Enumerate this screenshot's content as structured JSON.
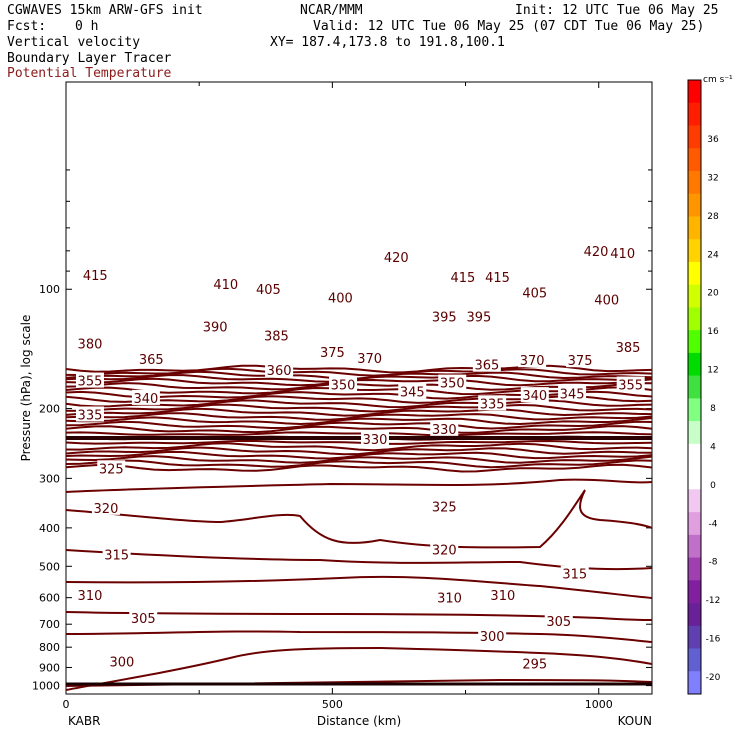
{
  "header": {
    "model": "CGWAVES 15km ARW-GFS init",
    "org": "NCAR/MMM",
    "init": "Init: 12 UTC Tue 06 May 25",
    "fcst_label": "Fcst:",
    "fcst_value": "0 h",
    "valid": "Valid: 12 UTC Tue 06 May 25 (07 CDT Tue 06 May 25)",
    "field1": "Vertical velocity",
    "xy": "XY= 187.4,173.8 to 191.8,100.1",
    "field2": "Boundary Layer Tracer",
    "field3": "Potential Temperature"
  },
  "colors": {
    "contour": "#6b0000",
    "field3_text": "#8b1a1a"
  },
  "chart_data": {
    "type": "contour-cross-section",
    "xlabel": "Distance (km)",
    "ylabel": "Pressure (hPa), log scale",
    "xlim": [
      0,
      1100
    ],
    "ylim": [
      1050,
      30
    ],
    "x_ticks": [
      0,
      500,
      1000
    ],
    "y_ticks": [
      100,
      200,
      300,
      400,
      500,
      600,
      700,
      800,
      900,
      1000
    ],
    "left_endpoint": "KABR",
    "right_endpoint": "KOUN",
    "contour_labels": [
      {
        "text": "415",
        "x": 55,
        "p": 92
      },
      {
        "text": "410",
        "x": 300,
        "p": 97
      },
      {
        "text": "405",
        "x": 380,
        "p": 100
      },
      {
        "text": "420",
        "x": 620,
        "p": 83
      },
      {
        "text": "415",
        "x": 745,
        "p": 93
      },
      {
        "text": "415",
        "x": 810,
        "p": 93
      },
      {
        "text": "420",
        "x": 995,
        "p": 80
      },
      {
        "text": "410",
        "x": 1045,
        "p": 81
      },
      {
        "text": "400",
        "x": 515,
        "p": 105
      },
      {
        "text": "405",
        "x": 880,
        "p": 102
      },
      {
        "text": "400",
        "x": 1015,
        "p": 106
      },
      {
        "text": "395",
        "x": 710,
        "p": 117
      },
      {
        "text": "395",
        "x": 775,
        "p": 117
      },
      {
        "text": "390",
        "x": 280,
        "p": 124
      },
      {
        "text": "385",
        "x": 395,
        "p": 131
      },
      {
        "text": "385",
        "x": 1055,
        "p": 140
      },
      {
        "text": "380",
        "x": 45,
        "p": 137
      },
      {
        "text": "375",
        "x": 500,
        "p": 144
      },
      {
        "text": "370",
        "x": 570,
        "p": 149
      },
      {
        "text": "365",
        "x": 160,
        "p": 150
      },
      {
        "text": "365",
        "x": 790,
        "p": 155
      },
      {
        "text": "370",
        "x": 875,
        "p": 151
      },
      {
        "text": "375",
        "x": 965,
        "p": 151
      },
      {
        "text": "360",
        "x": 400,
        "p": 160
      },
      {
        "text": "355",
        "x": 45,
        "p": 170
      },
      {
        "text": "350",
        "x": 520,
        "p": 174
      },
      {
        "text": "345",
        "x": 650,
        "p": 181
      },
      {
        "text": "350",
        "x": 725,
        "p": 172
      },
      {
        "text": "340",
        "x": 150,
        "p": 188
      },
      {
        "text": "340",
        "x": 880,
        "p": 185
      },
      {
        "text": "345",
        "x": 950,
        "p": 183
      },
      {
        "text": "355",
        "x": 1060,
        "p": 174
      },
      {
        "text": "335",
        "x": 45,
        "p": 207
      },
      {
        "text": "335",
        "x": 800,
        "p": 194
      },
      {
        "text": "330",
        "x": 580,
        "p": 239
      },
      {
        "text": "330",
        "x": 710,
        "p": 225
      },
      {
        "text": "325",
        "x": 85,
        "p": 283
      },
      {
        "text": "325",
        "x": 710,
        "p": 353
      },
      {
        "text": "320",
        "x": 75,
        "p": 356
      },
      {
        "text": "320",
        "x": 710,
        "p": 453
      },
      {
        "text": "315",
        "x": 95,
        "p": 467
      },
      {
        "text": "315",
        "x": 955,
        "p": 522
      },
      {
        "text": "310",
        "x": 45,
        "p": 590
      },
      {
        "text": "310",
        "x": 720,
        "p": 600
      },
      {
        "text": "310",
        "x": 820,
        "p": 590
      },
      {
        "text": "305",
        "x": 145,
        "p": 675
      },
      {
        "text": "305",
        "x": 925,
        "p": 688
      },
      {
        "text": "300",
        "x": 105,
        "p": 870
      },
      {
        "text": "300",
        "x": 800,
        "p": 750
      },
      {
        "text": "295",
        "x": 880,
        "p": 880
      }
    ],
    "colorbar": {
      "units": "cm s⁻¹",
      "ticks": [
        36,
        32,
        28,
        24,
        20,
        16,
        12,
        8,
        4,
        0,
        -4,
        -8,
        -12,
        -16,
        -20
      ],
      "colors": [
        "#ff0000",
        "#ff1e00",
        "#ff3c00",
        "#ff5a00",
        "#ff7800",
        "#ff9600",
        "#ffb400",
        "#ffd200",
        "#ffff00",
        "#d2ff00",
        "#a0ff00",
        "#50ff00",
        "#00dc00",
        "#40e040",
        "#80ff80",
        "#c8ffc8",
        "#ffffff",
        "#ffffff",
        "#f0c8f0",
        "#e0a0e0",
        "#c070c8",
        "#a040b0",
        "#8020a0",
        "#6a2098",
        "#6040b0",
        "#6060d0",
        "#8080ff"
      ]
    }
  }
}
